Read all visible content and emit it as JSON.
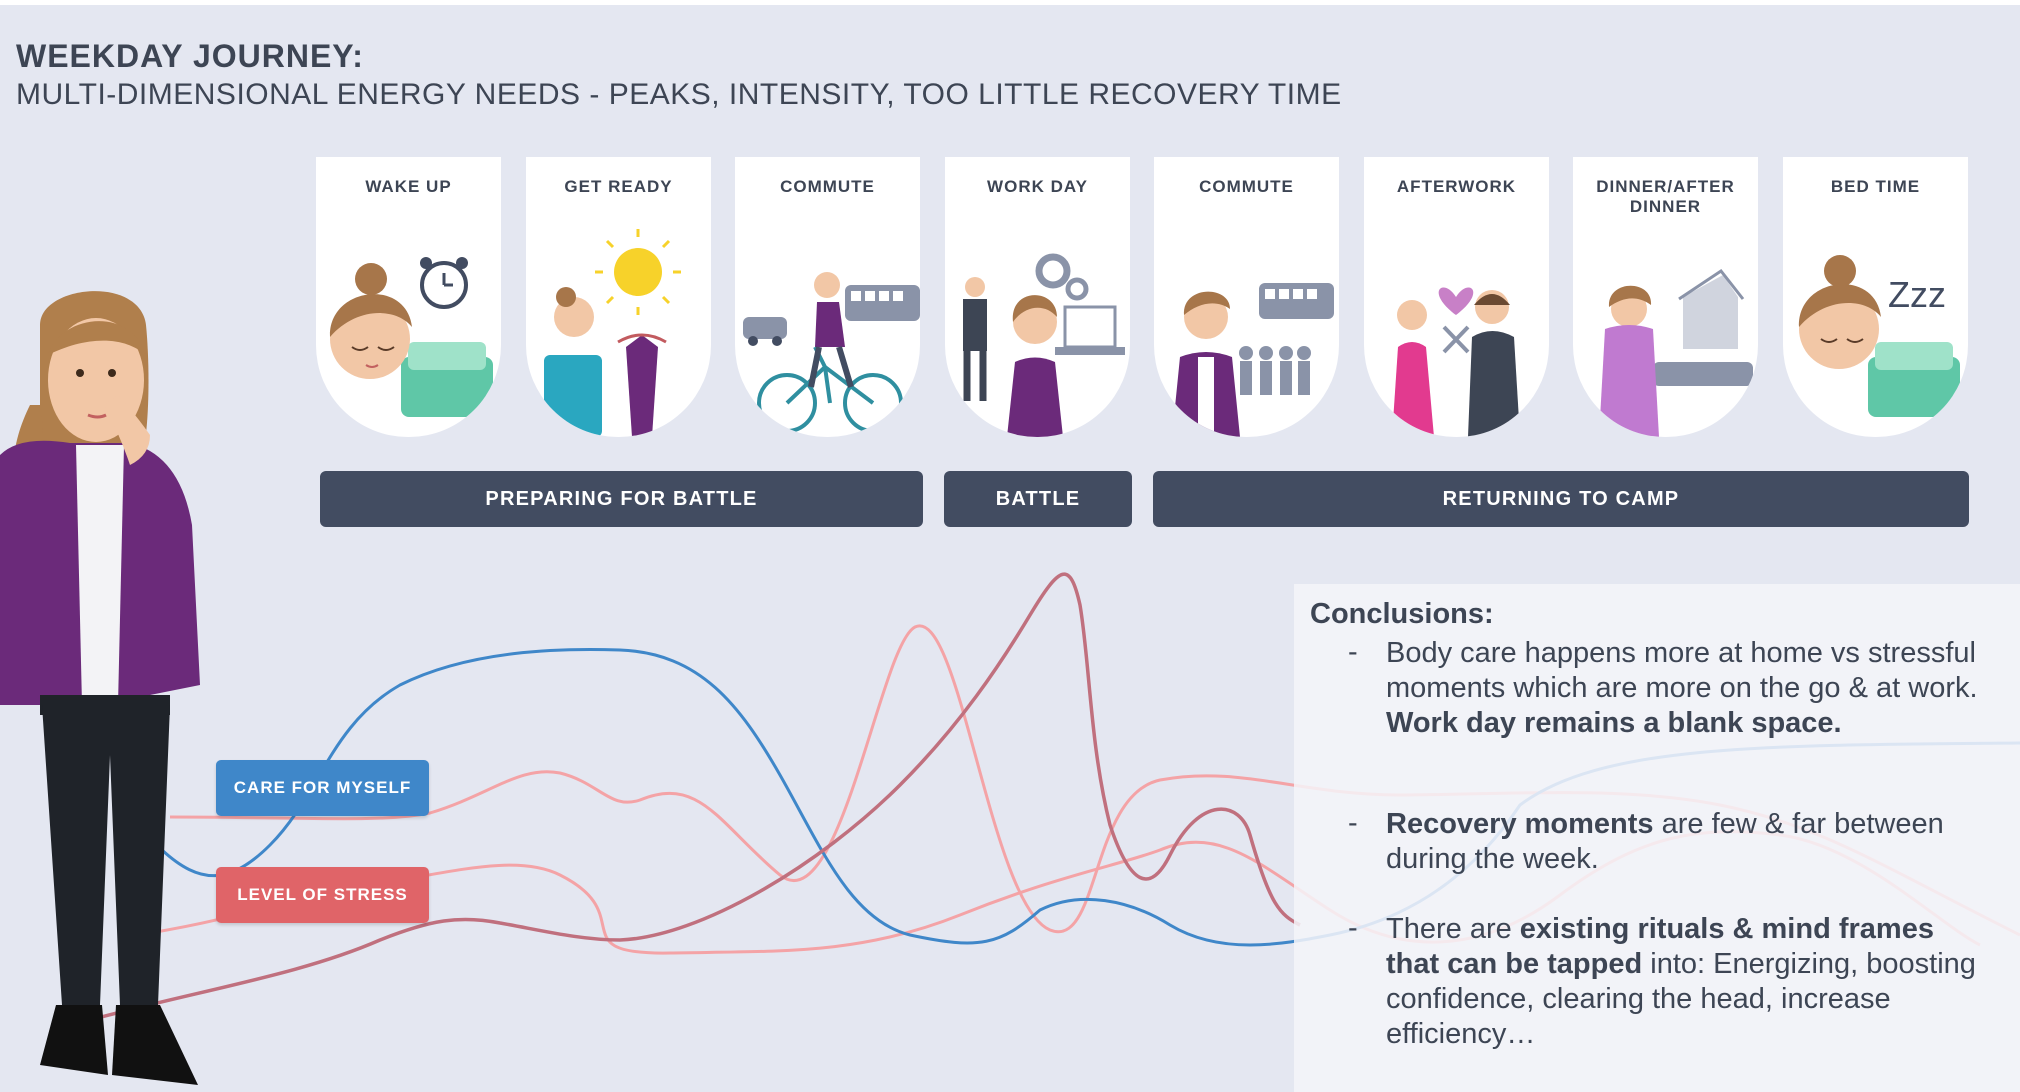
{
  "header": {
    "title": "WEEKDAY JOURNEY:",
    "subtitle": "MULTI-DIMENSIONAL ENERGY NEEDS - PEAKS, INTENSITY, TOO LITTLE RECOVERY TIME"
  },
  "stages": [
    {
      "label": "WAKE UP",
      "icon": "sleepy-face-alarm-clock-icon"
    },
    {
      "label": "GET READY",
      "icon": "sun-towel-dress-icon"
    },
    {
      "label": "COMMUTE",
      "icon": "bicycle-car-bus-icon"
    },
    {
      "label": "WORK DAY",
      "icon": "office-colleague-laptop-icon"
    },
    {
      "label": "COMMUTE",
      "icon": "bus-passengers-icon"
    },
    {
      "label": "AFTERWORK",
      "icon": "couple-heart-dinner-icon"
    },
    {
      "label": "DINNER/AFTER DINNER",
      "icon": "house-sofa-icon"
    },
    {
      "label": "BED TIME",
      "icon": "sleeping-zzz-bed-icon"
    }
  ],
  "phases": [
    {
      "label": "PREPARING FOR BATTLE"
    },
    {
      "label": "BATTLE"
    },
    {
      "label": "RETURNING TO CAMP"
    }
  ],
  "legend": {
    "care": "CARE FOR MYSELF",
    "stress": "LEVEL OF STRESS"
  },
  "colors": {
    "background": "#e4e7f1",
    "phase_bar": "#424c61",
    "care_line": "#3f87c9",
    "stress_line": "#c0707e",
    "light_pink_line": "#f4a3a6",
    "care_tag": "#3f87c9",
    "stress_tag": "#e06468"
  },
  "conclusions": {
    "heading": "Conclusions:",
    "item1_a": "Body care happens more at home vs stressful moments which are more on the go & at work. ",
    "item1_b": "Work day remains a blank space.",
    "item2_a": "Recovery moments",
    "item2_b": " are few & far between during the week.",
    "item3_a": "There are ",
    "item3_b": "existing rituals & mind frames that can be tapped",
    "item3_c": " into: Energizing, boosting confidence, clearing the head, increase efficiency…"
  }
}
